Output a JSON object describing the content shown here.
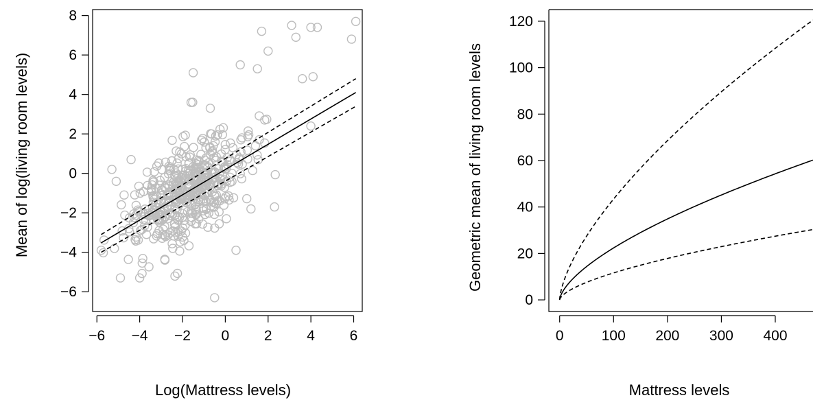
{
  "chart_data": [
    {
      "type": "scatter",
      "title": "",
      "xlabel": "Log(Mattress levels)",
      "ylabel": "Mean of log(living room levels)",
      "xlim": [
        -6.2,
        6.4
      ],
      "ylim": [
        -7,
        8.3
      ],
      "xticks": [
        -6,
        -4,
        -2,
        0,
        2,
        4,
        6
      ],
      "yticks": [
        -6,
        -4,
        -2,
        0,
        2,
        4,
        6,
        8
      ],
      "grid": false,
      "point_color": "#bdbdbd",
      "points": {
        "count": 520,
        "fit": {
          "slope": 0.64,
          "intercept": 0.2
        },
        "extreme_points": [
          [
            -5.8,
            -3.9
          ],
          [
            -5.3,
            0.2
          ],
          [
            -4.9,
            -5.3
          ],
          [
            -4.4,
            0.7
          ],
          [
            -4.0,
            -5.3
          ],
          [
            -1.5,
            5.1
          ],
          [
            -0.5,
            -6.3
          ],
          [
            0.7,
            5.5
          ],
          [
            1.7,
            7.2
          ],
          [
            2.0,
            6.2
          ],
          [
            3.1,
            7.5
          ],
          [
            3.3,
            6.9
          ],
          [
            3.6,
            4.8
          ],
          [
            4.0,
            7.4
          ],
          [
            4.1,
            4.9
          ],
          [
            4.3,
            7.4
          ],
          [
            5.9,
            6.8
          ],
          [
            6.1,
            7.7
          ],
          [
            4.0,
            2.4
          ],
          [
            1.5,
            5.3
          ],
          [
            2.3,
            -1.7
          ],
          [
            -0.7,
            3.3
          ],
          [
            -1.6,
            3.6
          ],
          [
            0.5,
            -3.9
          ],
          [
            1.2,
            -1.8
          ]
        ]
      },
      "series": [
        {
          "line_style": "solid",
          "x": [
            -5.8,
            6.1
          ],
          "y": [
            -3.52,
            4.1
          ]
        },
        {
          "line_style": "dashed",
          "x": [
            -5.8,
            6.1
          ],
          "y": [
            -3.1,
            4.8
          ]
        },
        {
          "line_style": "dashed",
          "x": [
            -5.8,
            6.1
          ],
          "y": [
            -4.0,
            3.4
          ]
        }
      ]
    },
    {
      "type": "line",
      "title": "",
      "xlabel": "Mattress levels",
      "ylabel": "Geometric mean of living room levels",
      "xlim": [
        -20,
        470
      ],
      "ylim": [
        -5,
        125
      ],
      "xticks": [
        0,
        100,
        200,
        300,
        400
      ],
      "yticks": [
        0,
        20,
        40,
        60,
        80,
        100,
        120
      ],
      "grid": false,
      "series": [
        {
          "line_style": "solid",
          "exponent": 0.64,
          "value_at_470": 60.2
        },
        {
          "line_style": "dashed",
          "exponent": 0.66,
          "value_at_470": 120.5
        },
        {
          "line_style": "dashed",
          "exponent": 0.62,
          "value_at_470": 30.3
        }
      ]
    }
  ]
}
